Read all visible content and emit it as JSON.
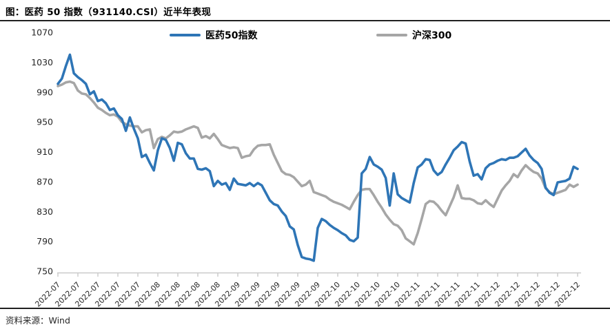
{
  "header": {
    "title": "图：医药 50 指数（931140.CSI）近半年表现"
  },
  "footer": {
    "source": "资料来源：Wind"
  },
  "chart_data": {
    "type": "line",
    "title": "图：医药 50 指数（931140.CSI）近半年表现",
    "xlabel": "",
    "ylabel": "",
    "ylim": [
      750,
      1070
    ],
    "y_ticks": [
      750,
      790,
      830,
      870,
      910,
      950,
      990,
      1030,
      1070
    ],
    "grid": false,
    "legend_position": "top",
    "x_tick_every": 5,
    "x_tick_labels": [
      "2022-07",
      "2022-07",
      "2022-07",
      "2022-07",
      "2022-07",
      "2022-08",
      "2022-08",
      "2022-08",
      "2022-08",
      "2022-09",
      "2022-09",
      "2022-09",
      "2022-09",
      "2022-09",
      "2022-10",
      "2022-10",
      "2022-10",
      "2022-10",
      "2022-11",
      "2022-11",
      "2022-11",
      "2022-11",
      "2022-12",
      "2022-12",
      "2022-12",
      "2022-12",
      "2022-12"
    ],
    "series": [
      {
        "name": "医药50指数",
        "color": "#2E75B6",
        "values": [
          1001,
          1008,
          1025,
          1040,
          1015,
          1010,
          1006,
          1001,
          987,
          991,
          978,
          980,
          975,
          966,
          968,
          959,
          954,
          938,
          956,
          941,
          928,
          903,
          906,
          895,
          885,
          912,
          928,
          926,
          915,
          898,
          922,
          920,
          908,
          901,
          901,
          887,
          886,
          888,
          884,
          864,
          871,
          866,
          868,
          859,
          874,
          867,
          866,
          865,
          868,
          864,
          868,
          865,
          855,
          845,
          840,
          838,
          830,
          824,
          810,
          806,
          785,
          769,
          767,
          766,
          764,
          808,
          820,
          817,
          812,
          808,
          805,
          801,
          798,
          792,
          790,
          795,
          881,
          887,
          903,
          893,
          890,
          886,
          875,
          838,
          881,
          853,
          848,
          845,
          842,
          868,
          889,
          893,
          900,
          899,
          885,
          879,
          883,
          893,
          902,
          912,
          917,
          923,
          921,
          897,
          878,
          880,
          873,
          888,
          893,
          895,
          898,
          900,
          899,
          902,
          902,
          904,
          909,
          914,
          905,
          899,
          895,
          887,
          862,
          855,
          852,
          869,
          870,
          871,
          874,
          890,
          887
        ]
      },
      {
        "name": "沪深300",
        "color": "#A6A6A6",
        "values": [
          998,
          1000,
          1003,
          1004,
          1002,
          992,
          988,
          987,
          982,
          976,
          969,
          966,
          962,
          959,
          960,
          957,
          950,
          947,
          945,
          944,
          944,
          936,
          939,
          940,
          915,
          927,
          930,
          928,
          932,
          937,
          936,
          937,
          940,
          942,
          944,
          942,
          929,
          931,
          928,
          934,
          927,
          919,
          917,
          915,
          916,
          915,
          902,
          904,
          905,
          913,
          918,
          919,
          919,
          920,
          906,
          895,
          884,
          880,
          879,
          876,
          870,
          864,
          866,
          871,
          856,
          854,
          852,
          850,
          846,
          843,
          841,
          839,
          836,
          833,
          843,
          852,
          859,
          860,
          860,
          852,
          843,
          835,
          826,
          819,
          813,
          811,
          805,
          794,
          790,
          786,
          801,
          820,
          840,
          844,
          843,
          838,
          831,
          825,
          837,
          849,
          865,
          848,
          847,
          847,
          845,
          841,
          840,
          845,
          840,
          836,
          847,
          858,
          865,
          871,
          880,
          876,
          885,
          892,
          887,
          883,
          881,
          874,
          861,
          856,
          853,
          855,
          857,
          859,
          866,
          863,
          866
        ]
      }
    ]
  }
}
